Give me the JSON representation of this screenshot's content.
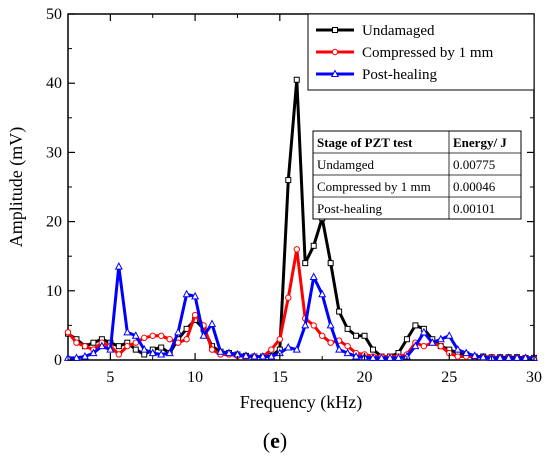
{
  "chart_data": {
    "type": "line",
    "xlabel": "Frequency  (kHz)",
    "ylabel": "Amplitude  (mV)",
    "xlim": [
      2.5,
      30
    ],
    "ylim": [
      0,
      50
    ],
    "xticks": [
      5,
      10,
      15,
      20,
      25,
      30
    ],
    "yticks": [
      0,
      10,
      20,
      30,
      40,
      50
    ],
    "grid": false,
    "legend_position": "top-right",
    "panel_label": {
      "open": "(",
      "letter": "e",
      "close": ")"
    },
    "series": [
      {
        "name": "Undamaged",
        "color": "#000000",
        "marker": "square",
        "x": [
          2.5,
          3.0,
          3.5,
          4.0,
          4.5,
          5.0,
          5.5,
          6.0,
          6.5,
          7.0,
          7.5,
          8.0,
          8.5,
          9.0,
          9.5,
          10.0,
          10.5,
          11.0,
          11.5,
          12.0,
          12.5,
          13.0,
          13.5,
          14.0,
          14.5,
          15.0,
          15.5,
          16.0,
          16.5,
          17.0,
          17.5,
          18.0,
          18.5,
          19.0,
          19.5,
          20.0,
          20.5,
          21.0,
          21.5,
          22.0,
          22.5,
          23.0,
          23.5,
          24.0,
          24.5,
          25.0,
          25.5,
          26.0,
          26.5,
          27.0,
          27.5,
          28.0,
          28.5,
          29.0,
          29.5,
          30.0
        ],
        "y": [
          3.8,
          3.0,
          2.0,
          2.5,
          3.0,
          2.5,
          2.0,
          2.5,
          1.5,
          0.8,
          1.5,
          1.8,
          1.0,
          3.0,
          4.5,
          5.8,
          4.5,
          2.0,
          1.2,
          1.0,
          0.8,
          0.6,
          0.5,
          0.5,
          0.6,
          1.5,
          26.0,
          40.5,
          14.0,
          16.5,
          20.5,
          14.0,
          7.0,
          4.5,
          3.5,
          3.5,
          1.5,
          0.5,
          0.5,
          1.0,
          3.0,
          5.0,
          4.5,
          3.0,
          2.0,
          1.5,
          1.0,
          0.8,
          0.5,
          0.5,
          0.4,
          0.4,
          0.4,
          0.4,
          0.3,
          0.3
        ]
      },
      {
        "name": "Compressed by 1 mm",
        "color": "#ff0000",
        "marker": "circle",
        "x": [
          2.5,
          3.0,
          3.5,
          4.0,
          4.5,
          5.0,
          5.5,
          6.0,
          6.5,
          7.0,
          7.5,
          8.0,
          8.5,
          9.0,
          9.5,
          10.0,
          10.5,
          11.0,
          11.5,
          12.0,
          12.5,
          13.0,
          13.5,
          14.0,
          14.5,
          15.0,
          15.5,
          16.0,
          16.5,
          17.0,
          17.5,
          18.0,
          18.5,
          19.0,
          19.5,
          20.0,
          20.5,
          21.0,
          21.5,
          22.0,
          22.5,
          23.0,
          23.5,
          24.0,
          24.5,
          25.0,
          25.5,
          26.0,
          26.5,
          27.0,
          27.5,
          28.0,
          28.5,
          29.0,
          29.5,
          30.0
        ],
        "y": [
          4.0,
          2.5,
          2.0,
          1.5,
          2.5,
          2.0,
          0.8,
          2.0,
          2.5,
          3.2,
          3.5,
          3.5,
          3.0,
          2.5,
          3.0,
          6.5,
          5.0,
          1.5,
          0.8,
          0.8,
          0.6,
          0.5,
          0.5,
          0.5,
          1.5,
          3.0,
          9.0,
          16.0,
          6.0,
          5.0,
          3.5,
          2.5,
          2.8,
          2.0,
          1.0,
          0.8,
          0.5,
          0.5,
          0.5,
          0.5,
          0.8,
          2.5,
          2.0,
          2.5,
          2.0,
          1.0,
          0.5,
          0.5,
          0.5,
          0.4,
          0.4,
          0.3,
          0.3,
          0.3,
          0.3,
          0.3
        ]
      },
      {
        "name": "Post-healing",
        "color": "#0000ff",
        "marker": "triangle",
        "x": [
          2.5,
          3.0,
          3.5,
          4.0,
          4.5,
          5.0,
          5.5,
          6.0,
          6.5,
          7.0,
          7.5,
          8.0,
          8.5,
          9.0,
          9.5,
          10.0,
          10.5,
          11.0,
          11.5,
          12.0,
          12.5,
          13.0,
          13.5,
          14.0,
          14.5,
          15.0,
          15.5,
          16.0,
          16.5,
          17.0,
          17.5,
          18.0,
          18.5,
          19.0,
          19.5,
          20.0,
          20.5,
          21.0,
          21.5,
          22.0,
          22.5,
          23.0,
          23.5,
          24.0,
          24.5,
          25.0,
          25.5,
          26.0,
          26.5,
          27.0,
          27.5,
          28.0,
          28.5,
          29.0,
          29.5,
          30.0
        ],
        "y": [
          0.3,
          0.3,
          0.5,
          1.0,
          2.0,
          1.5,
          13.5,
          4.0,
          3.5,
          1.5,
          1.0,
          0.8,
          1.0,
          4.0,
          9.5,
          9.2,
          3.5,
          5.2,
          1.2,
          1.0,
          0.8,
          0.6,
          0.5,
          0.5,
          0.5,
          1.0,
          1.8,
          1.5,
          5.0,
          12.0,
          9.5,
          5.0,
          1.5,
          1.0,
          0.5,
          0.4,
          0.3,
          0.3,
          0.3,
          0.3,
          0.5,
          2.0,
          4.0,
          2.5,
          3.0,
          3.5,
          1.5,
          1.0,
          0.6,
          0.4,
          0.3,
          0.3,
          0.3,
          0.3,
          0.3,
          0.3
        ]
      }
    ],
    "table": {
      "headers": [
        "Stage of PZT test",
        "Energy/ J"
      ],
      "rows": [
        [
          "Undamged",
          "0.00775"
        ],
        [
          "Compressed by 1 mm",
          "0.00046"
        ],
        [
          "Post-healing",
          "0.00101"
        ]
      ]
    }
  }
}
